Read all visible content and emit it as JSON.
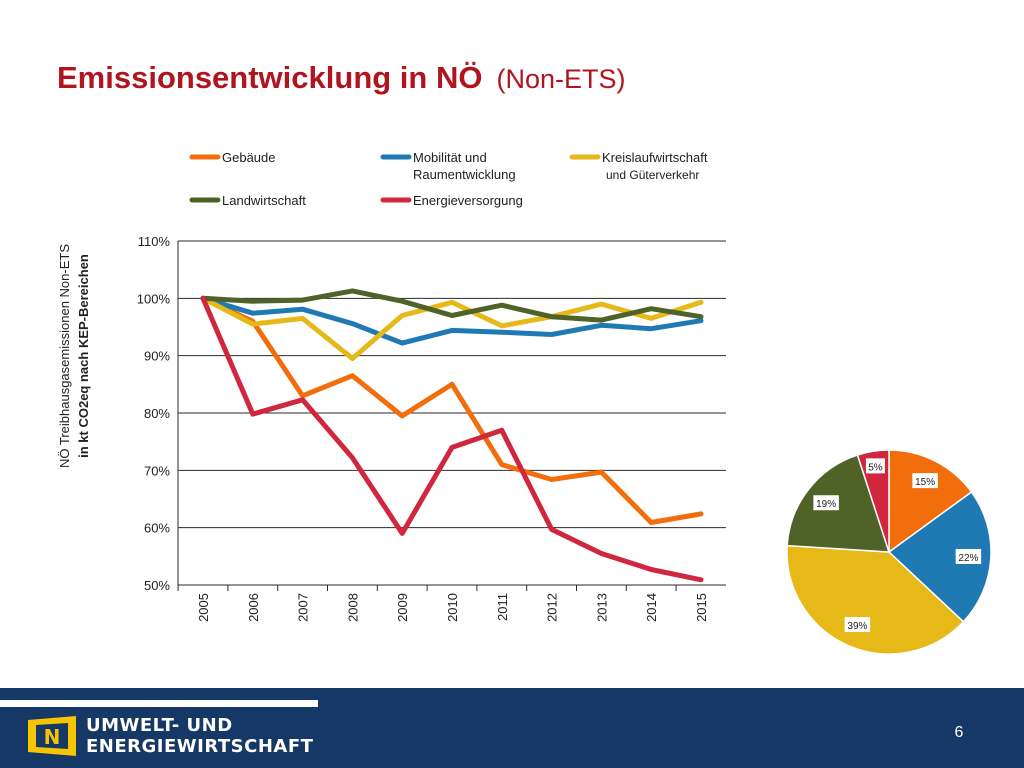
{
  "slide": {
    "title_main": "Emissionsentwicklung in NÖ",
    "title_sub": "(Non-ETS)",
    "page_number": "6"
  },
  "footer": {
    "brand_line1": "UMWELT- UND",
    "brand_line2": "ENERGIEWIRTSCHAFT",
    "logo_letter": "N"
  },
  "colors": {
    "title": "#b0151f",
    "footer_bg": "#163866",
    "logo_yellow": "#f6c400"
  },
  "chart_data": [
    {
      "type": "line",
      "ylabel_line1": "NÖ Treibhausgasemissionen Non-ETS",
      "ylabel_line2": "in kt CO2eq nach KEP-Bereichen",
      "x": [
        "2005",
        "2006",
        "2007",
        "2008",
        "2009",
        "2010",
        "2011",
        "2012",
        "2013",
        "2014",
        "2015"
      ],
      "ylim": [
        0.5,
        1.1
      ],
      "yticks": [
        0.5,
        0.6,
        0.7,
        0.8,
        0.9,
        1.0,
        1.1
      ],
      "ytick_labels": [
        "50%",
        "60%",
        "70%",
        "80%",
        "90%",
        "100%",
        "110%"
      ],
      "grid": true,
      "legend_position": "top",
      "series": [
        {
          "name": "Gebäude",
          "color": "#f26e0c",
          "values": [
            1.0,
            0.96,
            0.83,
            0.865,
            0.795,
            0.85,
            0.71,
            0.684,
            0.697,
            0.609,
            0.624
          ]
        },
        {
          "name_line1": "Mobilität und",
          "name_line2": "Raumentwicklung",
          "color": "#1f7ab4",
          "values": [
            1.0,
            0.974,
            0.981,
            0.956,
            0.922,
            0.944,
            0.941,
            0.937,
            0.953,
            0.947,
            0.961
          ]
        },
        {
          "name_line1": "Kreislaufwirtschaft",
          "name_line2": "und Güterverkehr",
          "color": "#e6b918",
          "values": [
            1.0,
            0.955,
            0.965,
            0.895,
            0.97,
            0.993,
            0.952,
            0.968,
            0.99,
            0.965,
            0.993
          ]
        },
        {
          "name": "Landwirtschaft",
          "color": "#4f6228",
          "values": [
            1.0,
            0.995,
            0.997,
            1.013,
            0.995,
            0.97,
            0.988,
            0.968,
            0.962,
            0.982,
            0.968
          ]
        },
        {
          "name": "Energieversorgung",
          "color": "#d0263e",
          "values": [
            1.0,
            0.798,
            0.823,
            0.722,
            0.59,
            0.74,
            0.77,
            0.597,
            0.555,
            0.527,
            0.509
          ]
        }
      ]
    },
    {
      "type": "pie",
      "slices": [
        {
          "label": "15%",
          "value": 15,
          "color": "#f26e0c"
        },
        {
          "label": "22%",
          "value": 22,
          "color": "#1f7ab4"
        },
        {
          "label": "39%",
          "value": 39,
          "color": "#e6b918"
        },
        {
          "label": "19%",
          "value": 19,
          "color": "#4f6228"
        },
        {
          "label": "5%",
          "value": 5,
          "color": "#d0263e"
        }
      ]
    }
  ]
}
